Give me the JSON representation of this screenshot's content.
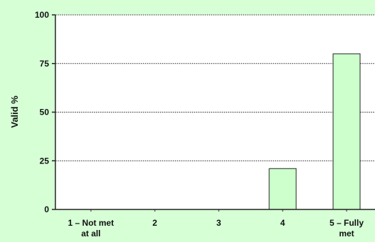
{
  "chart_data": {
    "type": "bar",
    "categories": [
      "1 – Not met at all",
      "2",
      "3",
      "4",
      "5 – Fully met"
    ],
    "category_lines": [
      [
        "1 – Not met",
        "at all"
      ],
      [
        "2"
      ],
      [
        "3"
      ],
      [
        "4"
      ],
      [
        "5 – Fully",
        "met"
      ]
    ],
    "values": [
      0,
      0,
      0,
      21,
      80
    ],
    "ylabel": "Valid %",
    "ylim": [
      0,
      100
    ],
    "yticks": [
      0,
      25,
      50,
      75,
      100
    ],
    "grid": true,
    "colors": {
      "background": "#d6ffd6",
      "plot_area": "#ffffff",
      "bar_fill": "#ccffcc",
      "bar_stroke": "#222222",
      "grid": "#555555",
      "axis": "#222222"
    }
  }
}
